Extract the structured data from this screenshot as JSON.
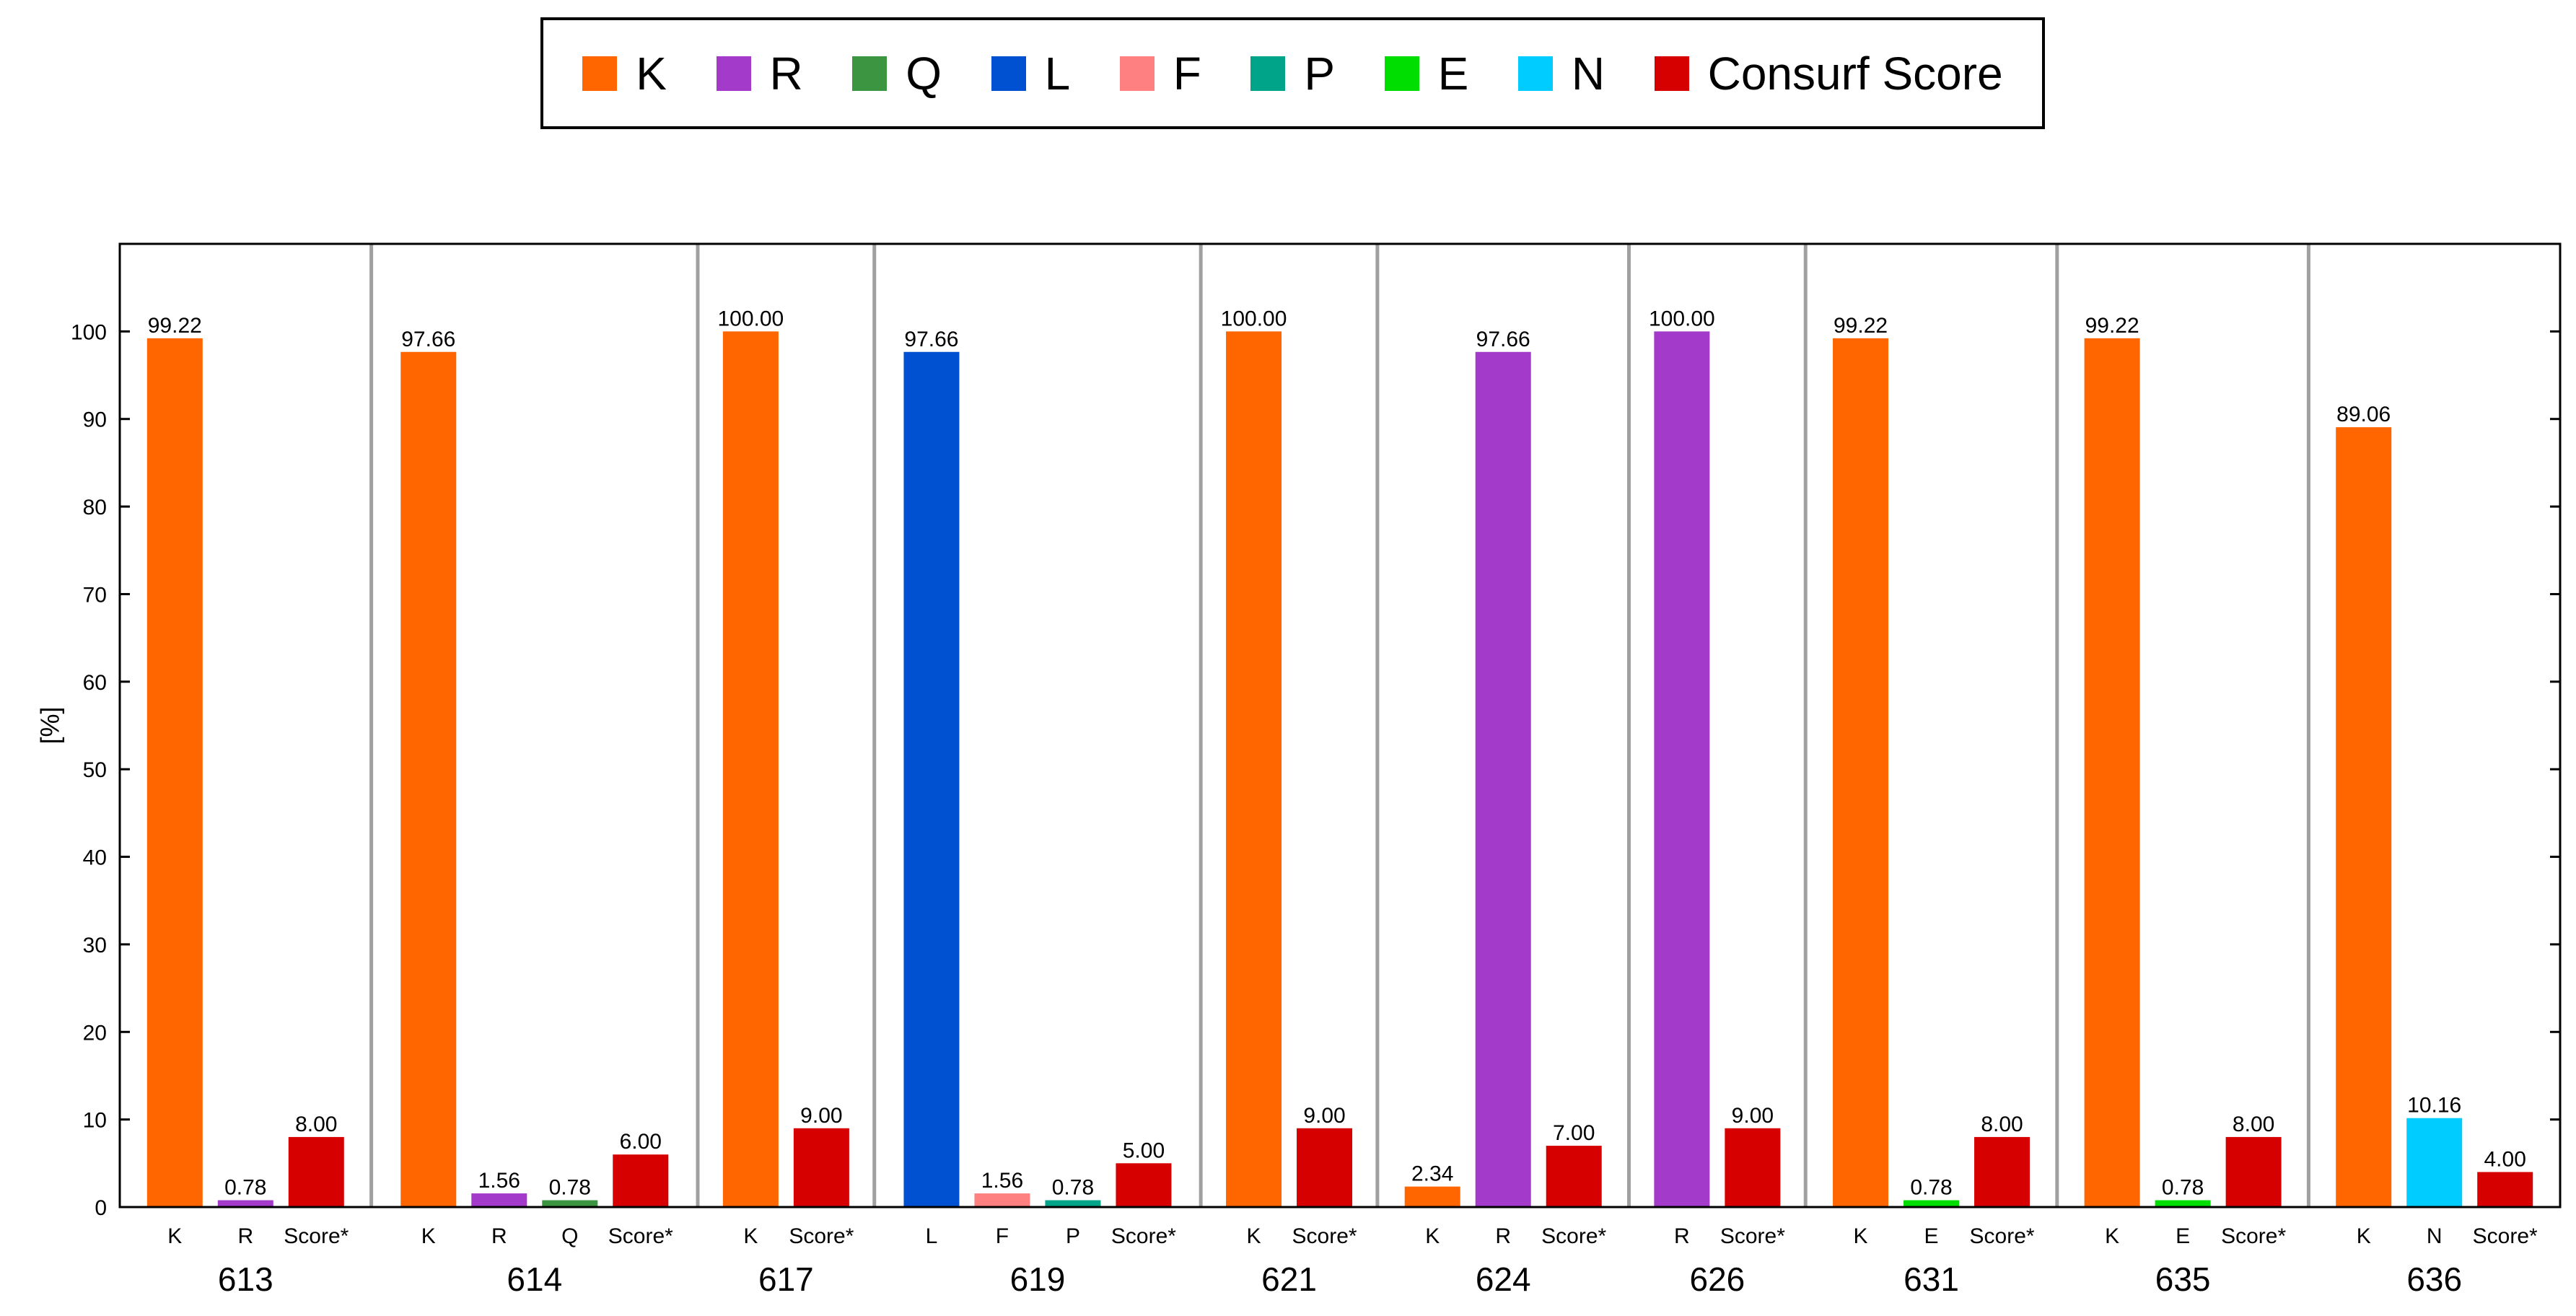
{
  "legend": [
    {
      "label": "K",
      "color": "#FF6600"
    },
    {
      "label": "R",
      "color": "#A43AC9"
    },
    {
      "label": "Q",
      "color": "#3B9541"
    },
    {
      "label": "L",
      "color": "#0050D2"
    },
    {
      "label": "F",
      "color": "#FF8080"
    },
    {
      "label": "P",
      "color": "#00A589"
    },
    {
      "label": "E",
      "color": "#00DD00"
    },
    {
      "label": "N",
      "color": "#00CCFF"
    },
    {
      "label": "Consurf Score",
      "color": "#D70000"
    }
  ],
  "chart_data": {
    "type": "bar",
    "title": "",
    "xlabel": "",
    "ylabel": "[%]",
    "ylim": [
      0,
      110
    ],
    "yticks": [
      0,
      10,
      20,
      30,
      40,
      50,
      60,
      70,
      80,
      90,
      100
    ],
    "grid": false,
    "legend_position": "top",
    "groups": [
      {
        "position": "613",
        "bars": [
          {
            "label": "K",
            "value": 99.22,
            "value_label": "99.22",
            "color": "#FF6600"
          },
          {
            "label": "R",
            "value": 0.78,
            "value_label": "0.78",
            "color": "#A43AC9"
          },
          {
            "label": "Score*",
            "value": 8.0,
            "value_label": "8.00",
            "color": "#D70000"
          }
        ]
      },
      {
        "position": "614",
        "bars": [
          {
            "label": "K",
            "value": 97.66,
            "value_label": "97.66",
            "color": "#FF6600"
          },
          {
            "label": "R",
            "value": 1.56,
            "value_label": "1.56",
            "color": "#A43AC9"
          },
          {
            "label": "Q",
            "value": 0.78,
            "value_label": "0.78",
            "color": "#3B9541"
          },
          {
            "label": "Score*",
            "value": 6.0,
            "value_label": "6.00",
            "color": "#D70000"
          }
        ]
      },
      {
        "position": "617",
        "bars": [
          {
            "label": "K",
            "value": 100.0,
            "value_label": "100.00",
            "color": "#FF6600"
          },
          {
            "label": "Score*",
            "value": 9.0,
            "value_label": "9.00",
            "color": "#D70000"
          }
        ]
      },
      {
        "position": "619",
        "bars": [
          {
            "label": "L",
            "value": 97.66,
            "value_label": "97.66",
            "color": "#0050D2"
          },
          {
            "label": "F",
            "value": 1.56,
            "value_label": "1.56",
            "color": "#FF8080"
          },
          {
            "label": "P",
            "value": 0.78,
            "value_label": "0.78",
            "color": "#00A589"
          },
          {
            "label": "Score*",
            "value": 5.0,
            "value_label": "5.00",
            "color": "#D70000"
          }
        ]
      },
      {
        "position": "621",
        "bars": [
          {
            "label": "K",
            "value": 100.0,
            "value_label": "100.00",
            "color": "#FF6600"
          },
          {
            "label": "Score*",
            "value": 9.0,
            "value_label": "9.00",
            "color": "#D70000"
          }
        ]
      },
      {
        "position": "624",
        "bars": [
          {
            "label": "K",
            "value": 2.34,
            "value_label": "2.34",
            "color": "#FF6600"
          },
          {
            "label": "R",
            "value": 97.66,
            "value_label": "97.66",
            "color": "#A43AC9"
          },
          {
            "label": "Score*",
            "value": 7.0,
            "value_label": "7.00",
            "color": "#D70000"
          }
        ]
      },
      {
        "position": "626",
        "bars": [
          {
            "label": "R",
            "value": 100.0,
            "value_label": "100.00",
            "color": "#A43AC9"
          },
          {
            "label": "Score*",
            "value": 9.0,
            "value_label": "9.00",
            "color": "#D70000"
          }
        ]
      },
      {
        "position": "631",
        "bars": [
          {
            "label": "K",
            "value": 99.22,
            "value_label": "99.22",
            "color": "#FF6600"
          },
          {
            "label": "E",
            "value": 0.78,
            "value_label": "0.78",
            "color": "#00DD00"
          },
          {
            "label": "Score*",
            "value": 8.0,
            "value_label": "8.00",
            "color": "#D70000"
          }
        ]
      },
      {
        "position": "635",
        "bars": [
          {
            "label": "K",
            "value": 99.22,
            "value_label": "99.22",
            "color": "#FF6600"
          },
          {
            "label": "E",
            "value": 0.78,
            "value_label": "0.78",
            "color": "#00DD00"
          },
          {
            "label": "Score*",
            "value": 8.0,
            "value_label": "8.00",
            "color": "#D70000"
          }
        ]
      },
      {
        "position": "636",
        "bars": [
          {
            "label": "K",
            "value": 89.06,
            "value_label": "89.06",
            "color": "#FF6600"
          },
          {
            "label": "N",
            "value": 10.16,
            "value_label": "10.16",
            "color": "#00CCFF"
          },
          {
            "label": "Score*",
            "value": 4.0,
            "value_label": "4.00",
            "color": "#D70000"
          }
        ]
      }
    ]
  }
}
